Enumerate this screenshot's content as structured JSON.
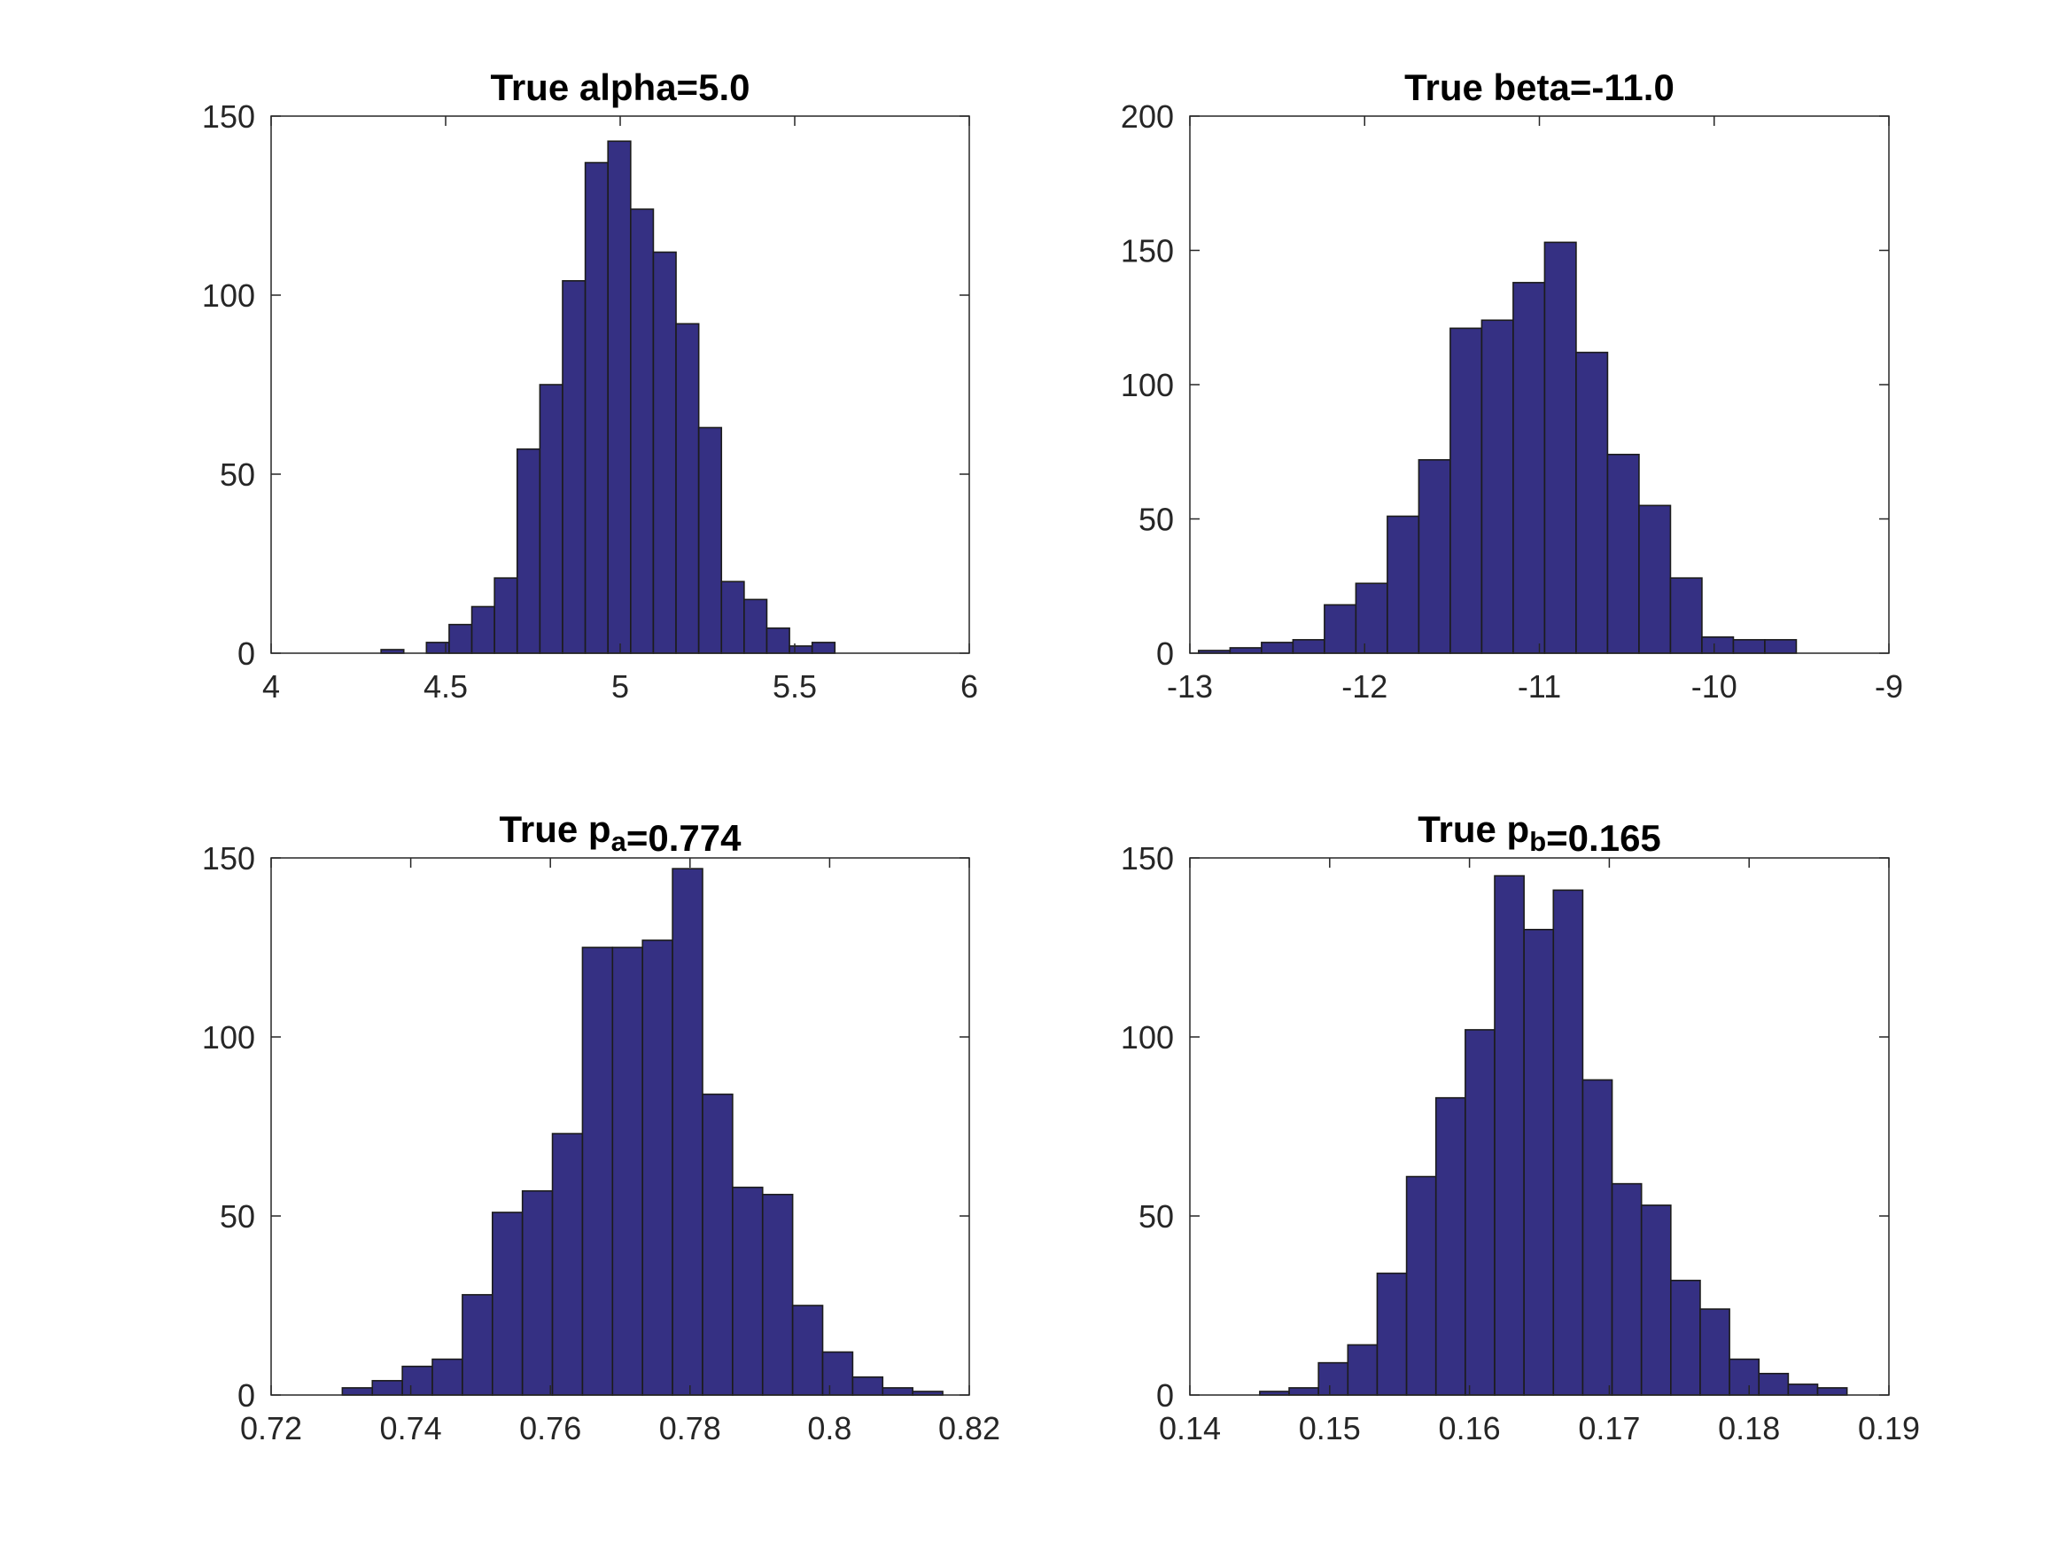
{
  "figure": {
    "background": "#ffffff",
    "bar_color": "#353083",
    "bar_edge_color": "#1c1c1c",
    "axis_color": "#262626"
  },
  "chart_data": [
    {
      "type": "bar",
      "subtype": "histogram",
      "title": "True alpha=5.0",
      "title_parts": [
        {
          "text": "True alpha=5.0"
        }
      ],
      "xlabel": "",
      "ylabel": "",
      "xlim": [
        4,
        6
      ],
      "ylim": [
        0,
        150
      ],
      "xticks": [
        4,
        4.5,
        5,
        5.5,
        6
      ],
      "xtick_labels": [
        "4",
        "4.5",
        "5",
        "5.5",
        "6"
      ],
      "yticks": [
        0,
        50,
        100,
        150
      ],
      "ytick_labels": [
        "0",
        "50",
        "100",
        "150"
      ],
      "bin_start": 4.315,
      "bin_width": 0.065,
      "values": [
        1,
        0,
        3,
        8,
        13,
        21,
        57,
        75,
        104,
        137,
        143,
        124,
        112,
        92,
        63,
        20,
        15,
        7,
        2,
        3
      ],
      "grid": false
    },
    {
      "type": "bar",
      "subtype": "histogram",
      "title": "True beta=-11.0",
      "title_parts": [
        {
          "text": "True beta=-11.0"
        }
      ],
      "xlabel": "",
      "ylabel": "",
      "xlim": [
        -13,
        -9
      ],
      "ylim": [
        0,
        200
      ],
      "xticks": [
        -13,
        -12,
        -11,
        -10,
        -9
      ],
      "xtick_labels": [
        "-13",
        "-12",
        "-11",
        "-10",
        "-9"
      ],
      "yticks": [
        0,
        50,
        100,
        150,
        200
      ],
      "ytick_labels": [
        "0",
        "50",
        "100",
        "150",
        "200"
      ],
      "bin_start": -12.95,
      "bin_width": 0.18,
      "values": [
        1,
        2,
        4,
        5,
        18,
        26,
        51,
        72,
        121,
        124,
        138,
        153,
        112,
        74,
        55,
        28,
        6,
        5,
        5
      ],
      "grid": false
    },
    {
      "type": "bar",
      "subtype": "histogram",
      "title": "True p_a=0.774",
      "title_parts": [
        {
          "text": "True p"
        },
        {
          "text": "a",
          "sub": true
        },
        {
          "text": "=0.774"
        }
      ],
      "xlabel": "",
      "ylabel": "",
      "xlim": [
        0.72,
        0.82
      ],
      "ylim": [
        0,
        150
      ],
      "xticks": [
        0.72,
        0.74,
        0.76,
        0.78,
        0.8,
        0.82
      ],
      "xtick_labels": [
        "0.72",
        "0.74",
        "0.76",
        "0.78",
        "0.8",
        "0.82"
      ],
      "yticks": [
        0,
        50,
        100,
        150
      ],
      "ytick_labels": [
        "0",
        "50",
        "100",
        "150"
      ],
      "bin_start": 0.7302,
      "bin_width": 0.0043,
      "values": [
        2,
        4,
        8,
        10,
        28,
        51,
        57,
        73,
        125,
        125,
        127,
        147,
        84,
        58,
        56,
        25,
        12,
        5,
        2,
        1
      ],
      "grid": false
    },
    {
      "type": "bar",
      "subtype": "histogram",
      "title": "True p_b=0.165",
      "title_parts": [
        {
          "text": "True p"
        },
        {
          "text": "b",
          "sub": true
        },
        {
          "text": "=0.165"
        }
      ],
      "xlabel": "",
      "ylabel": "",
      "xlim": [
        0.14,
        0.19
      ],
      "ylim": [
        0,
        150
      ],
      "xticks": [
        0.14,
        0.15,
        0.16,
        0.17,
        0.18,
        0.19
      ],
      "xtick_labels": [
        "0.14",
        "0.15",
        "0.16",
        "0.17",
        "0.18",
        "0.19"
      ],
      "yticks": [
        0,
        50,
        100,
        150
      ],
      "ytick_labels": [
        "0",
        "50",
        "100",
        "150"
      ],
      "bin_start": 0.145,
      "bin_width": 0.0021,
      "values": [
        1,
        2,
        9,
        14,
        34,
        61,
        83,
        102,
        145,
        130,
        141,
        88,
        59,
        53,
        32,
        24,
        10,
        6,
        3,
        2
      ],
      "grid": false
    }
  ]
}
